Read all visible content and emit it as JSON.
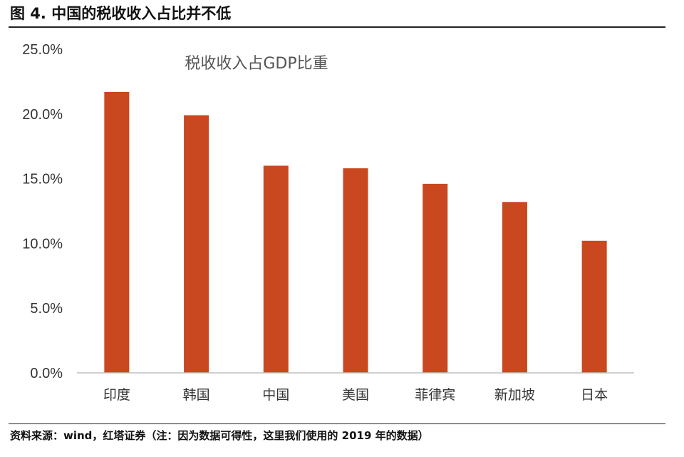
{
  "figure": {
    "title": "图 4. 中国的税收收入占比并不低",
    "source": "资料来源：wind，红塔证券（注：因为数据可得性，这里我们使用的 2019 年的数据）"
  },
  "chart_data": {
    "type": "bar",
    "title": "税收收入占GDP比重",
    "categories": [
      "印度",
      "韩国",
      "中国",
      "美国",
      "菲律宾",
      "新加坡",
      "日本"
    ],
    "values": [
      21.7,
      19.9,
      16.0,
      15.8,
      14.6,
      13.2,
      10.2
    ],
    "unit": "%",
    "ylim": [
      0,
      25
    ],
    "yticks": [
      "0.0%",
      "5.0%",
      "10.0%",
      "15.0%",
      "20.0%",
      "25.0%"
    ],
    "bar_color": "#C9481F",
    "grid": false,
    "legend": "none"
  }
}
